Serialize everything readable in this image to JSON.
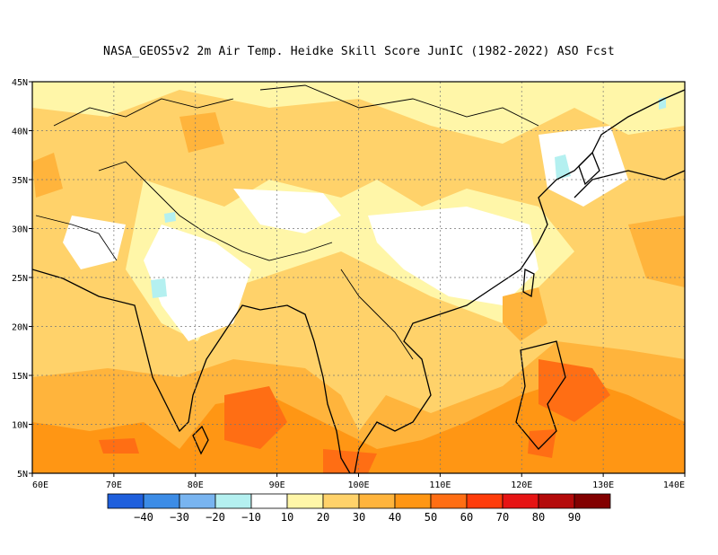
{
  "title": "NASA_GEOS5v2  2m Air Temp. Heidke Skill Score JunIC (1982-2022) ASO Fcst",
  "map": {
    "lon_range": [
      60,
      140
    ],
    "lat_range": [
      5,
      45
    ],
    "lon_ticks": [
      "60E",
      "70E",
      "80E",
      "90E",
      "100E",
      "110E",
      "120E",
      "130E",
      "140E"
    ],
    "lat_ticks": [
      "5N",
      "10N",
      "15N",
      "20N",
      "25N",
      "30N",
      "35N",
      "40N",
      "45N"
    ],
    "gridlines": true
  },
  "colorbar": {
    "colors": [
      "#1f5fdc",
      "#3c8ce6",
      "#78b4f0",
      "#b4f0f0",
      "#ffffff",
      "#fff6a8",
      "#ffd26a",
      "#ffb43c",
      "#ff9614",
      "#ff6e14",
      "#ff3c0a",
      "#e61414",
      "#b40a0a",
      "#820000"
    ],
    "labels": [
      "-40",
      "-30",
      "-20",
      "-10",
      "10",
      "20",
      "30",
      "40",
      "50",
      "60",
      "70",
      "80",
      "90"
    ]
  }
}
